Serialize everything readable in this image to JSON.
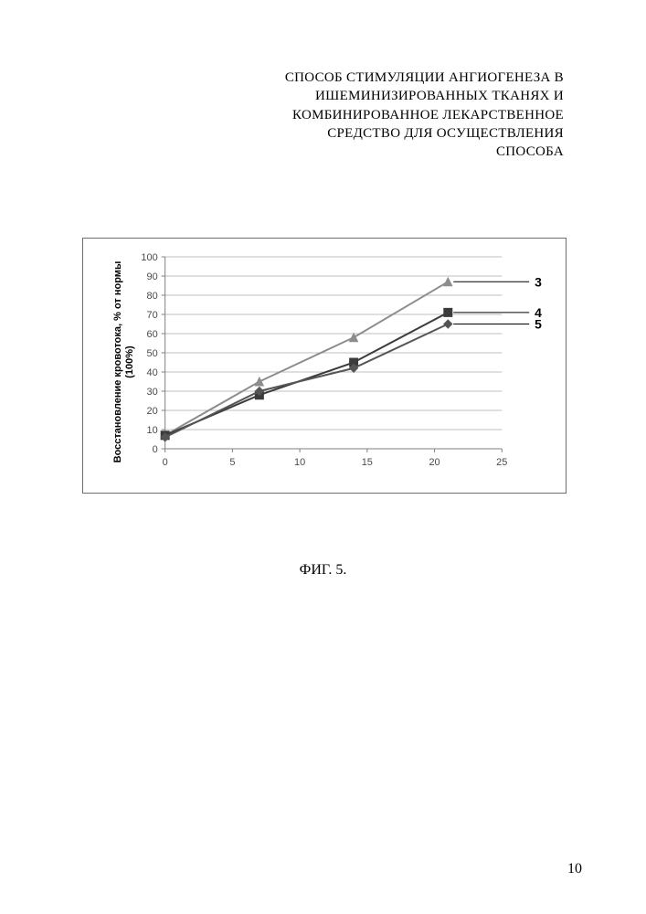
{
  "title_lines": [
    "СПОСОБ СТИМУЛЯЦИИ АНГИОГЕНЕЗА В",
    "ИШЕМИНИЗИРОВАННЫХ ТКАНЯХ И",
    "КОМБИНИРОВАННОЕ ЛЕКАРСТВЕННОЕ",
    "СРЕДСТВО ДЛЯ ОСУЩЕСТВЛЕНИЯ",
    "СПОСОБА"
  ],
  "caption": "ФИГ. 5.",
  "page_number": "10",
  "chart": {
    "type": "line",
    "ylabel": "Восстановление кровотока, % от нормы\n(100%)",
    "border_color": "#6e6e6e",
    "background_color": "#ffffff",
    "grid_color": "#bfbfbf",
    "axis_color": "#808080",
    "tick_font_color": "#4a4a4a",
    "tick_fontsize": 11,
    "label_fontsize": 11,
    "label_fontweight": "bold",
    "xlim": [
      0,
      25
    ],
    "ylim": [
      0,
      100
    ],
    "xticks": [
      0,
      5,
      10,
      15,
      20,
      25
    ],
    "yticks": [
      0,
      10,
      20,
      30,
      40,
      50,
      60,
      70,
      80,
      90,
      100
    ],
    "line_width": 2,
    "marker_size": 9,
    "series": [
      {
        "label": "3",
        "color": "#8d8d8d",
        "marker": "triangle",
        "x": [
          0,
          7,
          14,
          21
        ],
        "y": [
          7,
          35,
          58,
          87
        ]
      },
      {
        "label": "4",
        "color": "#3b3b3b",
        "marker": "square",
        "x": [
          0,
          7,
          14,
          21
        ],
        "y": [
          7,
          28,
          45,
          71
        ]
      },
      {
        "label": "5",
        "color": "#555555",
        "marker": "diamond",
        "x": [
          0,
          7,
          14,
          21
        ],
        "y": [
          6,
          30,
          42,
          65
        ]
      }
    ],
    "series_label_connectors": {
      "color": "#000000",
      "width": 1
    }
  }
}
